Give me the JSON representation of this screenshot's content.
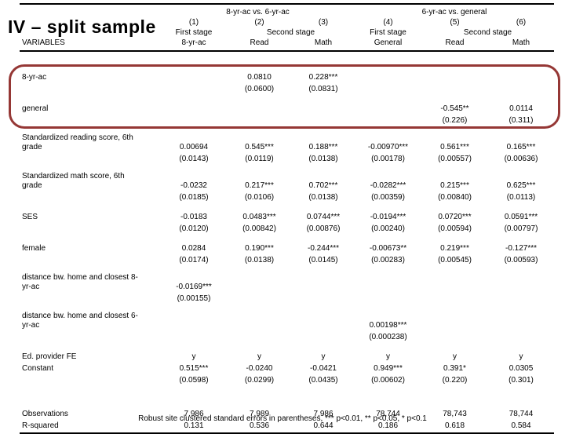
{
  "slide": {
    "title": "IV – split sample"
  },
  "table": {
    "group_headers": [
      "8-yr-ac vs. 6-yr-ac",
      "6-yr-ac vs. general"
    ],
    "col_nums": [
      "(1)",
      "(2)",
      "(3)",
      "(4)",
      "(5)",
      "(6)"
    ],
    "stage_headers": [
      "First stage",
      "Second stage",
      "First stage",
      "Second stage"
    ],
    "variables_header": "VARIABLES",
    "col_vars": [
      "8-yr-ac",
      "Read",
      "Math",
      "General",
      "Read",
      "Math"
    ],
    "rows": [
      {
        "label": "8-yr-ac",
        "cells": [
          "",
          "0.0810",
          "0.228***",
          "",
          "",
          ""
        ],
        "kind": "coef",
        "highlight": true
      },
      {
        "label": "",
        "cells": [
          "",
          "(0.0600)",
          "(0.0831)",
          "",
          "",
          ""
        ],
        "kind": "se",
        "highlight": true
      },
      {
        "label": "general",
        "cells": [
          "",
          "",
          "",
          "",
          "-0.545**",
          "0.0114"
        ],
        "kind": "coef",
        "highlight": true
      },
      {
        "label": "",
        "cells": [
          "",
          "",
          "",
          "",
          "(0.226)",
          "(0.311)"
        ],
        "kind": "se",
        "highlight": true
      },
      {
        "label": "Standardized reading score, 6th grade",
        "cells": [
          "0.00694",
          "0.545***",
          "0.188***",
          "-0.00970***",
          "0.561***",
          "0.165***"
        ],
        "kind": "coef"
      },
      {
        "label": "",
        "cells": [
          "(0.0143)",
          "(0.0119)",
          "(0.0138)",
          "(0.00178)",
          "(0.00557)",
          "(0.00636)"
        ],
        "kind": "se"
      },
      {
        "label": "Standardized math score, 6th grade",
        "cells": [
          "-0.0232",
          "0.217***",
          "0.702***",
          "-0.0282***",
          "0.215***",
          "0.625***"
        ],
        "kind": "coef"
      },
      {
        "label": "",
        "cells": [
          "(0.0185)",
          "(0.0106)",
          "(0.0138)",
          "(0.00359)",
          "(0.00840)",
          "(0.0113)"
        ],
        "kind": "se"
      },
      {
        "label": "SES",
        "cells": [
          "-0.0183",
          "0.0483***",
          "0.0744***",
          "-0.0194***",
          "0.0720***",
          "0.0591***"
        ],
        "kind": "coef"
      },
      {
        "label": "",
        "cells": [
          "(0.0120)",
          "(0.00842)",
          "(0.00876)",
          "(0.00240)",
          "(0.00594)",
          "(0.00797)"
        ],
        "kind": "se"
      },
      {
        "label": "female",
        "cells": [
          "0.0284",
          "0.190***",
          "-0.244***",
          "-0.00673**",
          "0.219***",
          "-0.127***"
        ],
        "kind": "coef"
      },
      {
        "label": "",
        "cells": [
          "(0.0174)",
          "(0.0138)",
          "(0.0145)",
          "(0.00283)",
          "(0.00545)",
          "(0.00593)"
        ],
        "kind": "se"
      },
      {
        "label": "distance bw. home and closest 8-yr-ac",
        "cells": [
          "-0.0169***",
          "",
          "",
          "",
          "",
          ""
        ],
        "kind": "coef"
      },
      {
        "label": "",
        "cells": [
          "(0.00155)",
          "",
          "",
          "",
          "",
          ""
        ],
        "kind": "se"
      },
      {
        "label": "distance bw. home and closest 6-yr-ac",
        "cells": [
          "",
          "",
          "",
          "0.00198***",
          "",
          ""
        ],
        "kind": "coef"
      },
      {
        "label": "",
        "cells": [
          "",
          "",
          "",
          "(0.000238)",
          "",
          ""
        ],
        "kind": "se"
      },
      {
        "label": "Ed. provider FE",
        "cells": [
          "y",
          "y",
          "y",
          "y",
          "y",
          "y"
        ],
        "kind": "coef"
      },
      {
        "label": "Constant",
        "cells": [
          "0.515***",
          "-0.0240",
          "-0.0421",
          "0.949***",
          "0.391*",
          "0.0305"
        ],
        "kind": "coef"
      },
      {
        "label": "",
        "cells": [
          "(0.0598)",
          "(0.0299)",
          "(0.0435)",
          "(0.00602)",
          "(0.220)",
          "(0.301)"
        ],
        "kind": "se"
      },
      {
        "label": "",
        "cells": [
          "",
          "",
          "",
          "",
          "",
          ""
        ],
        "kind": "spacer"
      },
      {
        "label": "Observations",
        "cells": [
          "7,986",
          "7,989",
          "7,986",
          "78,744",
          "78,743",
          "78,744"
        ],
        "kind": "coef"
      },
      {
        "label": "R-squared",
        "cells": [
          "0.131",
          "0.536",
          "0.644",
          "0.186",
          "0.618",
          "0.584"
        ],
        "kind": "coef"
      }
    ],
    "footnote": "Robust site clustered standard errors in parentheses, *** p<0.01, ** p<0.05, * p<0.1"
  },
  "annotations": {
    "highlight_color": "#953735",
    "highlighted_rows": "8-yr-ac and general"
  }
}
